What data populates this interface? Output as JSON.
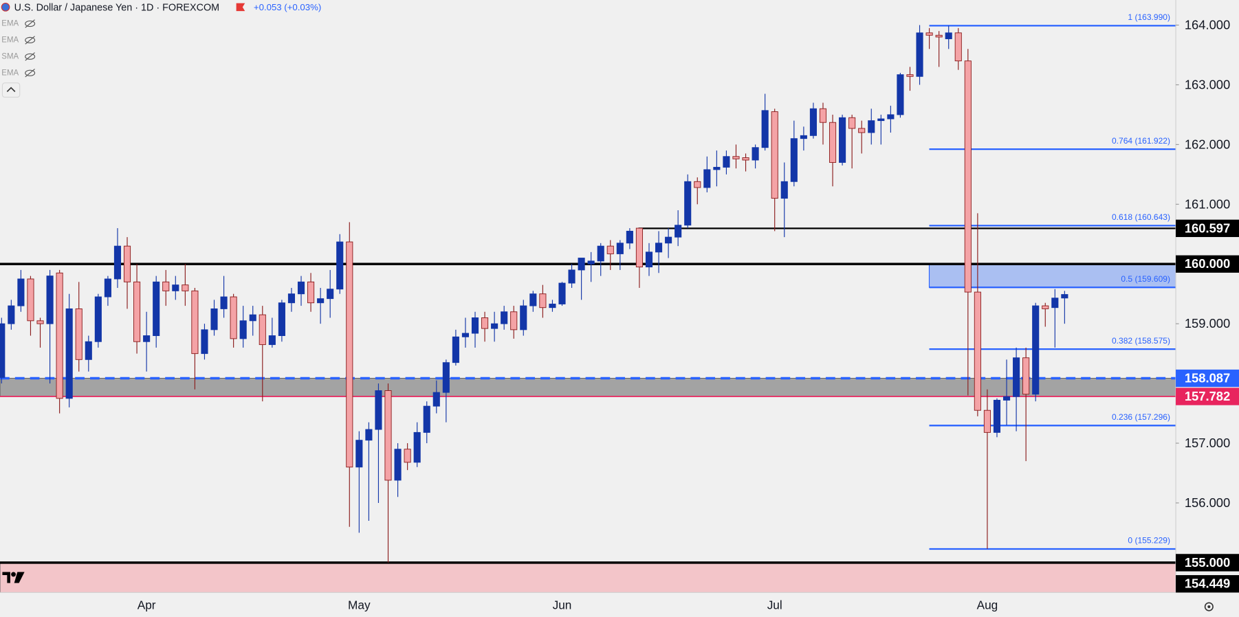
{
  "header": {
    "title": "U.S. Dollar / Japanese Yen · 1D · FOREXCOM",
    "change": "+0.053 (+0.03%)"
  },
  "indicators": [
    "EMA",
    "EMA",
    "SMA",
    "EMA"
  ],
  "chart_data": {
    "type": "candlestick",
    "categories": [
      null,
      null,
      null,
      null,
      null,
      null,
      null,
      null,
      null,
      null,
      null,
      null,
      null,
      null,
      null,
      "Apr",
      null,
      null,
      null,
      null,
      null,
      null,
      null,
      null,
      null,
      null,
      null,
      null,
      null,
      null,
      null,
      null,
      null,
      null,
      null,
      null,
      null,
      "May",
      null,
      null,
      null,
      null,
      null,
      null,
      null,
      null,
      null,
      null,
      null,
      null,
      null,
      null,
      null,
      null,
      null,
      null,
      null,
      null,
      "Jun",
      null,
      null,
      null,
      null,
      null,
      null,
      null,
      null,
      null,
      null,
      null,
      null,
      null,
      null,
      null,
      null,
      null,
      null,
      null,
      null,
      null,
      "Jul",
      null,
      null,
      null,
      null,
      null,
      null,
      null,
      null,
      null,
      null,
      null,
      null,
      null,
      null,
      null,
      null,
      null,
      null,
      null,
      null,
      null,
      "Aug",
      null,
      null,
      null,
      null,
      null,
      null,
      null,
      null
    ],
    "ohlc": [
      [
        158.1,
        159.1,
        158.0,
        159.0
      ],
      [
        159.0,
        159.4,
        158.9,
        159.3
      ],
      [
        159.3,
        159.9,
        159.2,
        159.75
      ],
      [
        159.75,
        159.8,
        158.8,
        159.05
      ],
      [
        159.05,
        159.1,
        158.6,
        159.0
      ],
      [
        159.0,
        159.9,
        158.0,
        159.8
      ],
      [
        159.85,
        159.9,
        157.5,
        157.75
      ],
      [
        157.75,
        159.5,
        157.6,
        159.25
      ],
      [
        159.25,
        159.7,
        158.2,
        158.4
      ],
      [
        158.4,
        158.8,
        158.2,
        158.7
      ],
      [
        158.7,
        159.5,
        158.6,
        159.45
      ],
      [
        159.45,
        159.8,
        159.3,
        159.75
      ],
      [
        159.75,
        160.6,
        159.6,
        160.3
      ],
      [
        160.3,
        160.45,
        159.25,
        159.7
      ],
      [
        159.7,
        160.0,
        158.5,
        158.7
      ],
      [
        158.7,
        159.2,
        158.2,
        158.8
      ],
      [
        158.8,
        159.8,
        158.6,
        159.7
      ],
      [
        159.7,
        159.9,
        159.3,
        159.55
      ],
      [
        159.55,
        159.8,
        159.4,
        159.65
      ],
      [
        159.65,
        160.0,
        159.3,
        159.55
      ],
      [
        159.55,
        159.6,
        157.9,
        158.5
      ],
      [
        158.5,
        159.0,
        158.4,
        158.9
      ],
      [
        158.9,
        159.4,
        158.8,
        159.25
      ],
      [
        159.25,
        159.8,
        159.1,
        159.45
      ],
      [
        159.45,
        159.5,
        158.6,
        158.75
      ],
      [
        158.75,
        159.3,
        158.6,
        159.05
      ],
      [
        159.05,
        159.3,
        158.8,
        159.15
      ],
      [
        159.15,
        159.3,
        157.7,
        158.65
      ],
      [
        158.65,
        159.1,
        158.6,
        158.8
      ],
      [
        158.8,
        159.4,
        158.7,
        159.35
      ],
      [
        159.35,
        159.6,
        159.2,
        159.5
      ],
      [
        159.5,
        159.8,
        159.3,
        159.7
      ],
      [
        159.7,
        159.85,
        159.2,
        159.35
      ],
      [
        159.35,
        159.6,
        159.0,
        159.42
      ],
      [
        159.42,
        159.9,
        159.1,
        159.58
      ],
      [
        159.58,
        160.5,
        159.5,
        160.37
      ],
      [
        160.37,
        160.7,
        155.6,
        156.6
      ],
      [
        156.6,
        157.2,
        155.5,
        157.05
      ],
      [
        157.05,
        157.35,
        155.7,
        157.23
      ],
      [
        157.23,
        158.0,
        156.0,
        157.88
      ],
      [
        157.88,
        158.0,
        155.0,
        156.38
      ],
      [
        156.38,
        157.0,
        156.1,
        156.9
      ],
      [
        156.9,
        157.0,
        156.55,
        156.68
      ],
      [
        156.68,
        157.35,
        156.6,
        157.18
      ],
      [
        157.18,
        157.7,
        157.0,
        157.62
      ],
      [
        157.62,
        158.05,
        157.5,
        157.85
      ],
      [
        157.85,
        158.4,
        157.35,
        158.35
      ],
      [
        158.35,
        158.9,
        158.3,
        158.78
      ],
      [
        158.78,
        159.1,
        158.6,
        158.84
      ],
      [
        158.84,
        159.2,
        158.6,
        159.1
      ],
      [
        159.1,
        159.2,
        158.7,
        158.92
      ],
      [
        158.92,
        159.2,
        158.7,
        159.0
      ],
      [
        159.0,
        159.3,
        158.9,
        159.2
      ],
      [
        159.2,
        159.3,
        158.75,
        158.9
      ],
      [
        158.9,
        159.4,
        158.8,
        159.3
      ],
      [
        159.3,
        159.55,
        159.2,
        159.5
      ],
      [
        159.5,
        159.65,
        159.1,
        159.27
      ],
      [
        159.27,
        159.4,
        159.2,
        159.33
      ],
      [
        159.33,
        159.7,
        159.3,
        159.68
      ],
      [
        159.68,
        160.0,
        159.6,
        159.9
      ],
      [
        159.9,
        160.1,
        159.4,
        160.1
      ],
      [
        160.0,
        160.2,
        159.7,
        160.05
      ],
      [
        160.05,
        160.35,
        159.8,
        160.3
      ],
      [
        160.3,
        160.4,
        159.9,
        160.17
      ],
      [
        160.17,
        160.4,
        159.9,
        160.35
      ],
      [
        160.35,
        160.6,
        160.25,
        160.55
      ],
      [
        160.6,
        160.6,
        159.6,
        159.95
      ],
      [
        159.95,
        160.35,
        159.8,
        160.2
      ],
      [
        160.2,
        160.55,
        159.85,
        160.35
      ],
      [
        160.35,
        160.6,
        160.1,
        160.45
      ],
      [
        160.45,
        160.9,
        160.3,
        160.65
      ],
      [
        160.65,
        161.5,
        160.6,
        161.38
      ],
      [
        161.38,
        161.45,
        161.0,
        161.28
      ],
      [
        161.28,
        161.8,
        161.2,
        161.58
      ],
      [
        161.58,
        161.9,
        161.3,
        161.62
      ],
      [
        161.62,
        161.9,
        161.5,
        161.8
      ],
      [
        161.8,
        162.0,
        161.6,
        161.76
      ],
      [
        161.78,
        161.85,
        161.55,
        161.74
      ],
      [
        161.74,
        162.0,
        161.6,
        161.95
      ],
      [
        161.95,
        162.85,
        161.9,
        162.57
      ],
      [
        162.55,
        162.6,
        160.55,
        161.1
      ],
      [
        161.1,
        161.7,
        160.45,
        161.38
      ],
      [
        161.38,
        162.4,
        161.3,
        162.1
      ],
      [
        162.1,
        162.3,
        161.9,
        162.15
      ],
      [
        162.15,
        162.7,
        162.1,
        162.6
      ],
      [
        162.6,
        162.7,
        162.0,
        162.37
      ],
      [
        162.37,
        162.5,
        161.3,
        161.7
      ],
      [
        161.7,
        162.5,
        161.65,
        162.45
      ],
      [
        162.45,
        162.5,
        161.6,
        162.27
      ],
      [
        162.27,
        162.4,
        161.85,
        162.2
      ],
      [
        162.2,
        162.6,
        162.0,
        162.4
      ],
      [
        162.4,
        162.5,
        162.0,
        162.43
      ],
      [
        162.43,
        162.65,
        162.2,
        162.5
      ],
      [
        162.5,
        163.2,
        162.45,
        163.17
      ],
      [
        163.17,
        163.3,
        162.9,
        163.14
      ],
      [
        163.14,
        164.0,
        163.0,
        163.87
      ],
      [
        163.87,
        163.95,
        163.6,
        163.83
      ],
      [
        163.83,
        163.9,
        163.3,
        163.8
      ],
      [
        163.77,
        163.99,
        163.6,
        163.87
      ],
      [
        163.87,
        163.95,
        163.25,
        163.4
      ],
      [
        163.4,
        163.6,
        157.8,
        159.53
      ],
      [
        159.53,
        160.85,
        157.45,
        157.55
      ],
      [
        157.55,
        157.9,
        155.23,
        157.18
      ],
      [
        157.18,
        157.75,
        157.1,
        157.72
      ],
      [
        157.72,
        158.4,
        157.3,
        157.78
      ],
      [
        157.78,
        158.6,
        157.2,
        158.43
      ],
      [
        158.43,
        158.6,
        156.7,
        157.82
      ],
      [
        157.82,
        159.35,
        157.7,
        159.3
      ],
      [
        159.3,
        159.35,
        158.95,
        159.25
      ],
      [
        159.27,
        159.58,
        158.6,
        159.43
      ],
      [
        159.43,
        159.55,
        159.0,
        159.49
      ]
    ],
    "up_color": "#1336a8",
    "down_color": "#f4a3a6",
    "down_edge": "#8b1c1c",
    "ylim": [
      154.5,
      164.42
    ],
    "yticks": [
      {
        "value": 156,
        "label": "156.000"
      },
      {
        "value": 157,
        "label": "157.000"
      },
      {
        "value": 159,
        "label": "159.000"
      },
      {
        "value": 161,
        "label": "161.000"
      },
      {
        "value": 162,
        "label": "162.000"
      },
      {
        "value": 163,
        "label": "163.000"
      },
      {
        "value": 164,
        "label": "164.000"
      }
    ],
    "price_labels": [
      {
        "value": 160.597,
        "color": "#000000"
      },
      {
        "value": {
          "value": 160,
          "label": "160.000"
        },
        "color": "#000000"
      },
      {
        "value": 158.087,
        "color": "#2962ff"
      },
      {
        "value": 157.782,
        "color": "#e8245e"
      },
      {
        "value": {
          "value": 155,
          "label": "155.000"
        },
        "color": "#000000"
      },
      {
        "value": 154.449,
        "color": "#000000"
      }
    ],
    "zones": [
      {
        "from": 157.782,
        "to": 158.087,
        "color": "#a3a3a3"
      },
      {
        "from": 154.449,
        "to": 155,
        "color": "#f3c5c9"
      }
    ],
    "fib_zone": {
      "from": 159.609,
      "to": 160,
      "color": "#aabff2"
    },
    "fib_levels": [
      {
        "value": 163.99,
        "label": "1 (163.990)"
      },
      {
        "value": 161.922,
        "label": "0.764 (161.922)"
      },
      {
        "value": 160.643,
        "label": "0.618 (160.643)"
      },
      {
        "value": 159.609,
        "label": "0.5 (159.609)"
      },
      {
        "value": 158.575,
        "label": "0.382 (158.575)"
      },
      {
        "value": 157.296,
        "label": "0.236 (157.296)"
      },
      {
        "value": 155.229,
        "label": "0 (155.229)"
      }
    ],
    "fib_color": "#2962ff",
    "lines": [
      {
        "value": 160,
        "color": "#000000",
        "width": 3,
        "full": true
      },
      {
        "value": 160.597,
        "color": "#000000",
        "width": 2,
        "full": false
      },
      {
        "value": 155,
        "color": "#000000",
        "width": 3,
        "full": true
      },
      {
        "value": 158.087,
        "color": "#2962ff",
        "width": 3,
        "full": true,
        "dashed": true
      },
      {
        "value": 157.782,
        "color": "#e8245e",
        "width": 1.5,
        "full": true
      }
    ]
  }
}
